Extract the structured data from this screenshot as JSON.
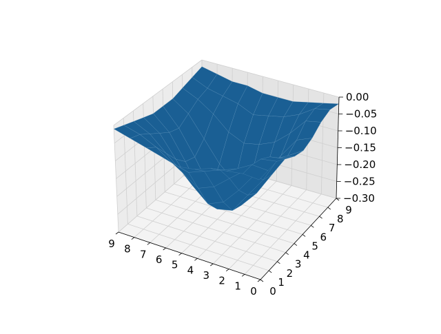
{
  "colors": {
    "surface": "#1a5f94",
    "surface_edge": "#6fa3c9",
    "pane_left": "#ececec",
    "pane_right": "#e4e4e4",
    "pane_floor": "#f3f3f3",
    "grid": "#cfcfcf",
    "axis_line": "#000000"
  },
  "chart_data": {
    "type": "surface",
    "title": "",
    "xlabel": "",
    "ylabel": "",
    "zlabel": "",
    "grid": true,
    "x": [
      0,
      1,
      2,
      3,
      4,
      5,
      6,
      7,
      8,
      9
    ],
    "y": [
      0,
      1,
      2,
      3,
      4,
      5,
      6,
      7,
      8,
      9
    ],
    "xlim": [
      0,
      9
    ],
    "ylim": [
      0,
      9
    ],
    "zlim": [
      -0.3,
      0.0
    ],
    "x_ticks": [
      "0",
      "1",
      "2",
      "3",
      "4",
      "5",
      "6",
      "7",
      "8",
      "9"
    ],
    "y_ticks": [
      "0",
      "1",
      "2",
      "3",
      "4",
      "5",
      "6",
      "7",
      "8",
      "9"
    ],
    "z_ticks": [
      "0.00",
      "−0.05",
      "−0.10",
      "−0.15",
      "−0.20",
      "−0.25",
      "−0.30"
    ],
    "z": [
      [
        0.0,
        0.0,
        0.0,
        -0.02,
        -0.04,
        -0.05,
        -0.04,
        -0.02,
        -0.01,
        -0.02
      ],
      [
        0.0,
        0.0,
        -0.01,
        -0.03,
        -0.06,
        -0.08,
        -0.06,
        -0.03,
        -0.02,
        -0.03
      ],
      [
        -0.01,
        -0.03,
        -0.06,
        -0.1,
        -0.14,
        -0.15,
        -0.12,
        -0.08,
        -0.05,
        -0.04
      ],
      [
        -0.02,
        -0.05,
        -0.1,
        -0.16,
        -0.2,
        -0.22,
        -0.18,
        -0.12,
        -0.07,
        -0.05
      ],
      [
        -0.04,
        -0.07,
        -0.14,
        -0.21,
        -0.26,
        -0.27,
        -0.22,
        -0.14,
        -0.08,
        -0.05
      ],
      [
        -0.05,
        -0.09,
        -0.16,
        -0.23,
        -0.27,
        -0.28,
        -0.24,
        -0.15,
        -0.09,
        -0.05
      ],
      [
        -0.04,
        -0.08,
        -0.13,
        -0.19,
        -0.24,
        -0.25,
        -0.2,
        -0.13,
        -0.07,
        -0.04
      ],
      [
        -0.03,
        -0.05,
        -0.09,
        -0.13,
        -0.16,
        -0.17,
        -0.14,
        -0.09,
        -0.06,
        -0.04
      ],
      [
        -0.02,
        -0.03,
        -0.05,
        -0.07,
        -0.09,
        -0.1,
        -0.08,
        -0.06,
        -0.05,
        -0.03
      ],
      [
        -0.01,
        -0.02,
        -0.03,
        -0.04,
        -0.05,
        -0.05,
        -0.05,
        -0.04,
        -0.03,
        -0.02
      ]
    ]
  }
}
